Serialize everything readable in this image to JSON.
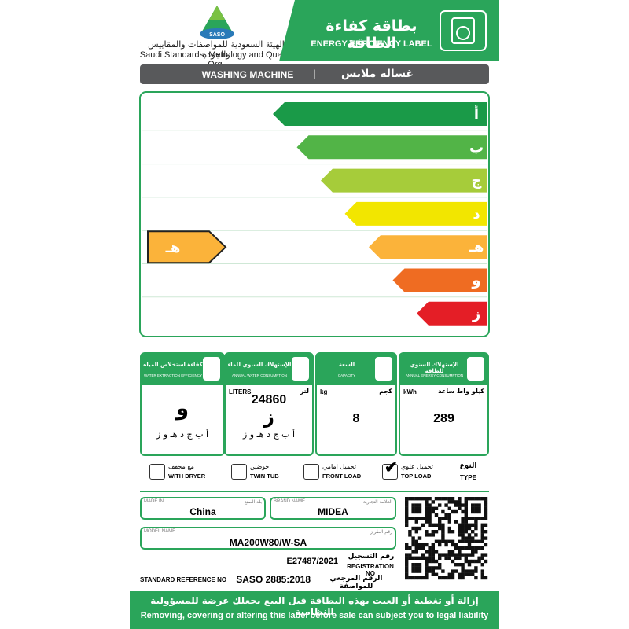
{
  "header": {
    "logo": "SASO",
    "org_ar": "الهيئة السعودية للمواصفات والمقاييس والجودة",
    "org_en": "Saudi Standards, Metrology and Quality Org.",
    "title_ar": "بطاقة كفاءة الطاقة",
    "title_en": "ENERGY EFFICIENCY LABEL"
  },
  "product": {
    "en": "WASHING MACHINE",
    "separator": "|",
    "ar": "غسالة ملابس"
  },
  "rating": {
    "grades": [
      "أ",
      "ب",
      "ج",
      "د",
      "هـ",
      "و",
      "ز"
    ],
    "selected": "هـ"
  },
  "boxes": [
    {
      "title_ar": "كفاءة استخلاص المياه",
      "title_en": "WATER EXTRACTION EFFICIENCY",
      "value": "و",
      "scale": "أ ب ج د هـ و ز"
    },
    {
      "title_ar": "الإستهلاك السنوي للماء",
      "title_en": "ANNUAL WATER CONSUMPTION",
      "unit_en": "LITERS",
      "unit_ar": "لتر",
      "value": "24860",
      "grade": "ز",
      "scale": "أ ب ج د هـ و ز"
    },
    {
      "title_ar": "السعة",
      "title_en": "CAPACITY",
      "unit_en": "kg",
      "unit_ar": "كجم",
      "value": "8"
    },
    {
      "title_ar": "الإستهلاك السنوي للطاقة",
      "title_en": "ANNUAL ENERGY CONSUMPTION",
      "unit_en": "kWh",
      "unit_ar": "كيلو واط ساعة",
      "value": "289"
    }
  ],
  "type": {
    "label_ar": "النوع",
    "label_en": "TYPE",
    "options": [
      {
        "ar": "مع مجفف",
        "en": "WITH DRYER",
        "checked": false
      },
      {
        "ar": "حوضين",
        "en": "TWIN TUB",
        "checked": false
      },
      {
        "ar": "تحميل امامي",
        "en": "FRONT LOAD",
        "checked": false
      },
      {
        "ar": "تحميل علوي",
        "en": "TOP LOAD",
        "checked": true
      }
    ]
  },
  "fields": {
    "made_in": {
      "label_en": "MADE IN",
      "label_ar": "بلد الصنع",
      "value": "China"
    },
    "brand": {
      "label_en": "BRAND NAME",
      "label_ar": "العلامة التجارية",
      "value": "MIDEA"
    },
    "model": {
      "label_en": "MODEL NAME",
      "label_ar": "رقم الطراز",
      "value": "MA200W80/W-SA"
    },
    "registration": {
      "label_ar": "رقم التسجيل",
      "label_en": "REGISTRATION NO",
      "value": "E27487/2021"
    },
    "standard": {
      "label_en": "STANDARD REFERENCE NO",
      "label_ar": "الرقم المرجعي للمواصفة",
      "value": "SASO 2885:2018"
    }
  },
  "footer": {
    "ar": "إزالة أو تغطية أو العبث بهذه البطاقة قبل البيع يجعلك عرضة للمسؤولية النظامية",
    "en": "Removing, covering or altering this label before sale can subject you to legal liability"
  }
}
